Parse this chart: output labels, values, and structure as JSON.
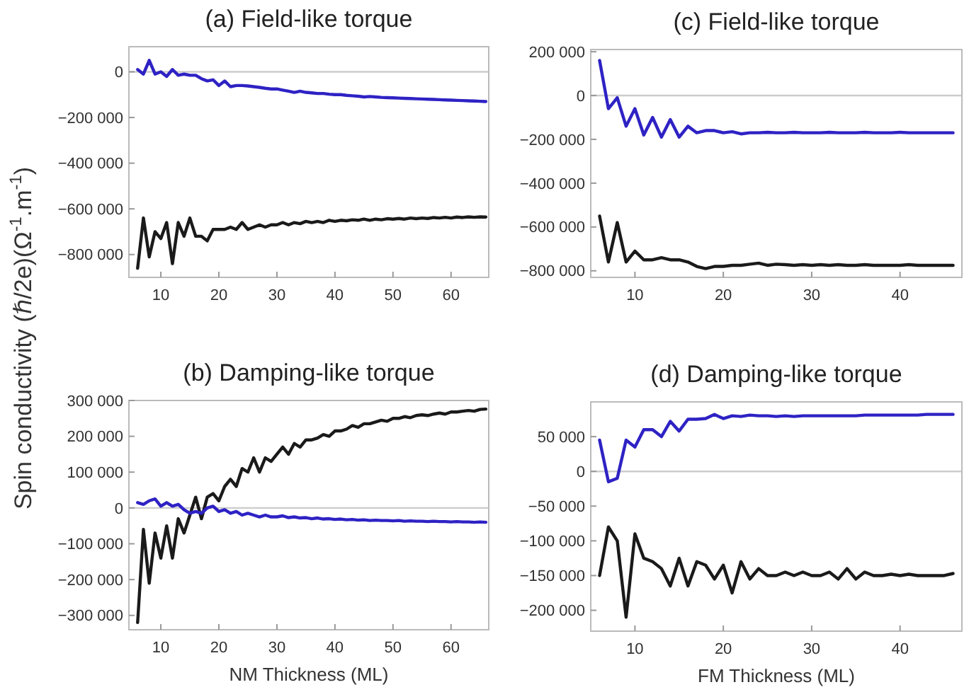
{
  "chart_data": [
    {
      "type": "line",
      "title": "(a) Field-like torque",
      "ylabel": "Spin conductivity (ℏ/2e)(Ω$^{-1}$.m$^{-1}$)",
      "xlim": [
        4.5,
        66.5
      ],
      "xticks": [
        10,
        20,
        30,
        40,
        50,
        60
      ],
      "ylim": [
        -900000,
        110000
      ],
      "yticks": [
        {
          "value": 0,
          "label": "0"
        },
        {
          "value": -200000,
          "label": "−200 000"
        },
        {
          "value": -400000,
          "label": "−400 000"
        },
        {
          "value": -600000,
          "label": "−600 000"
        },
        {
          "value": -800000,
          "label": "−800 000"
        }
      ],
      "ref_lines": [
        {
          "axis": "y",
          "value": 0,
          "color": "#cccccc"
        }
      ],
      "grid": false,
      "x": [
        6,
        7,
        8,
        9,
        10,
        11,
        12,
        13,
        14,
        15,
        16,
        17,
        18,
        19,
        20,
        21,
        22,
        23,
        24,
        25,
        26,
        27,
        28,
        29,
        30,
        31,
        32,
        33,
        34,
        35,
        36,
        37,
        38,
        39,
        40,
        41,
        42,
        43,
        44,
        45,
        46,
        47,
        48,
        49,
        50,
        51,
        52,
        53,
        54,
        55,
        56,
        57,
        58,
        59,
        60,
        61,
        62,
        63,
        64,
        65,
        66
      ],
      "series": [
        {
          "color": "#2e22c4",
          "values": [
            10000,
            -10000,
            50000,
            -10000,
            0,
            -20000,
            10000,
            -15000,
            -10000,
            -15000,
            -15000,
            -30000,
            -40000,
            -35000,
            -60000,
            -40000,
            -65000,
            -60000,
            -60000,
            -62000,
            -65000,
            -68000,
            -72000,
            -75000,
            -75000,
            -80000,
            -85000,
            -90000,
            -85000,
            -90000,
            -92000,
            -95000,
            -95000,
            -98000,
            -100000,
            -100000,
            -103000,
            -105000,
            -107000,
            -110000,
            -108000,
            -110000,
            -112000,
            -113000,
            -114000,
            -115000,
            -116000,
            -117000,
            -118000,
            -119000,
            -120000,
            -121000,
            -122000,
            -123000,
            -124000,
            -125000,
            -126000,
            -127000,
            -128000,
            -129000,
            -130000
          ]
        },
        {
          "color": "#1a1a1a",
          "values": [
            -860000,
            -640000,
            -810000,
            -700000,
            -730000,
            -660000,
            -840000,
            -660000,
            -720000,
            -640000,
            -720000,
            -720000,
            -740000,
            -690000,
            -690000,
            -690000,
            -680000,
            -690000,
            -660000,
            -690000,
            -680000,
            -670000,
            -680000,
            -670000,
            -670000,
            -660000,
            -670000,
            -660000,
            -665000,
            -655000,
            -660000,
            -655000,
            -660000,
            -650000,
            -655000,
            -650000,
            -652000,
            -648000,
            -650000,
            -645000,
            -650000,
            -645000,
            -648000,
            -643000,
            -645000,
            -642000,
            -645000,
            -640000,
            -643000,
            -640000,
            -642000,
            -638000,
            -640000,
            -637000,
            -640000,
            -636000,
            -638000,
            -635000,
            -637000,
            -635000,
            -636000
          ]
        }
      ]
    },
    {
      "type": "line",
      "title": "(c) Field-like torque",
      "xlim": [
        5,
        47
      ],
      "xticks": [
        10,
        20,
        30,
        40
      ],
      "ylim": [
        -830000,
        210000
      ],
      "yticks": [
        {
          "value": 200000,
          "label": "200 000"
        },
        {
          "value": 0,
          "label": "0"
        },
        {
          "value": -200000,
          "label": "−200 000"
        },
        {
          "value": -400000,
          "label": "−400 000"
        },
        {
          "value": -600000,
          "label": "−600 000"
        },
        {
          "value": -800000,
          "label": "−800 000"
        }
      ],
      "ref_lines": [
        {
          "axis": "y",
          "value": 0,
          "color": "#cccccc"
        }
      ],
      "grid": false,
      "x": [
        6,
        7,
        8,
        9,
        10,
        11,
        12,
        13,
        14,
        15,
        16,
        17,
        18,
        19,
        20,
        21,
        22,
        23,
        24,
        25,
        26,
        27,
        28,
        29,
        30,
        31,
        32,
        33,
        34,
        35,
        36,
        37,
        38,
        39,
        40,
        41,
        42,
        43,
        44,
        45,
        46
      ],
      "series": [
        {
          "color": "#2e22c4",
          "values": [
            160000,
            -60000,
            -10000,
            -140000,
            -60000,
            -180000,
            -100000,
            -190000,
            -110000,
            -190000,
            -140000,
            -170000,
            -160000,
            -160000,
            -170000,
            -165000,
            -175000,
            -170000,
            -170000,
            -168000,
            -170000,
            -170000,
            -168000,
            -170000,
            -170000,
            -170000,
            -168000,
            -170000,
            -170000,
            -170000,
            -168000,
            -170000,
            -170000,
            -170000,
            -168000,
            -170000,
            -170000,
            -170000,
            -170000,
            -170000,
            -170000
          ]
        },
        {
          "color": "#1a1a1a",
          "values": [
            -550000,
            -760000,
            -580000,
            -760000,
            -710000,
            -750000,
            -750000,
            -740000,
            -750000,
            -750000,
            -760000,
            -780000,
            -790000,
            -780000,
            -780000,
            -775000,
            -775000,
            -770000,
            -765000,
            -775000,
            -770000,
            -772000,
            -775000,
            -772000,
            -775000,
            -772000,
            -775000,
            -772000,
            -775000,
            -775000,
            -772000,
            -775000,
            -775000,
            -775000,
            -775000,
            -772000,
            -775000,
            -775000,
            -775000,
            -775000,
            -775000
          ]
        }
      ]
    },
    {
      "type": "line",
      "title": "(b) Damping-like torque",
      "xlabel": "NM Thickness (ML)",
      "xlim": [
        4.5,
        66.5
      ],
      "xticks": [
        10,
        20,
        30,
        40,
        50,
        60
      ],
      "ylim": [
        -340000,
        300000
      ],
      "yticks": [
        {
          "value": 300000,
          "label": "300 000"
        },
        {
          "value": 200000,
          "label": "200 000"
        },
        {
          "value": 100000,
          "label": "100 000"
        },
        {
          "value": 0,
          "label": "0"
        },
        {
          "value": -100000,
          "label": "−100 000"
        },
        {
          "value": -200000,
          "label": "−200 000"
        },
        {
          "value": -300000,
          "label": "−300 000"
        }
      ],
      "ref_lines": [
        {
          "axis": "y",
          "value": 0,
          "color": "#cccccc"
        }
      ],
      "grid": false,
      "x": [
        6,
        7,
        8,
        9,
        10,
        11,
        12,
        13,
        14,
        15,
        16,
        17,
        18,
        19,
        20,
        21,
        22,
        23,
        24,
        25,
        26,
        27,
        28,
        29,
        30,
        31,
        32,
        33,
        34,
        35,
        36,
        37,
        38,
        39,
        40,
        41,
        42,
        43,
        44,
        45,
        46,
        47,
        48,
        49,
        50,
        51,
        52,
        53,
        54,
        55,
        56,
        57,
        58,
        59,
        60,
        61,
        62,
        63,
        64,
        65,
        66
      ],
      "series": [
        {
          "color": "#1a1a1a",
          "values": [
            -320000,
            -60000,
            -210000,
            -70000,
            -140000,
            -50000,
            -140000,
            -30000,
            -70000,
            -20000,
            30000,
            -30000,
            30000,
            40000,
            20000,
            60000,
            80000,
            60000,
            110000,
            100000,
            140000,
            100000,
            140000,
            130000,
            150000,
            170000,
            150000,
            180000,
            170000,
            190000,
            190000,
            195000,
            205000,
            200000,
            215000,
            215000,
            220000,
            230000,
            225000,
            235000,
            235000,
            240000,
            245000,
            242000,
            250000,
            250000,
            255000,
            252000,
            258000,
            260000,
            258000,
            262000,
            265000,
            262000,
            268000,
            268000,
            270000,
            272000,
            270000,
            275000,
            276000
          ]
        },
        {
          "color": "#2e22c4",
          "values": [
            15000,
            10000,
            20000,
            25000,
            5000,
            15000,
            5000,
            10000,
            -5000,
            -15000,
            -10000,
            -15000,
            0,
            5000,
            -10000,
            -5000,
            -15000,
            -10000,
            -20000,
            -15000,
            -20000,
            -25000,
            -20000,
            -25000,
            -25000,
            -22000,
            -27000,
            -25000,
            -28000,
            -27000,
            -30000,
            -28000,
            -31000,
            -30000,
            -32000,
            -31000,
            -33000,
            -32000,
            -34000,
            -33000,
            -35000,
            -34000,
            -35000,
            -35000,
            -36000,
            -35000,
            -37000,
            -36000,
            -37000,
            -37000,
            -38000,
            -37000,
            -38000,
            -38000,
            -39000,
            -38000,
            -39000,
            -39000,
            -40000,
            -39000,
            -40000
          ]
        }
      ]
    },
    {
      "type": "line",
      "title": "(d) Damping-like torque",
      "xlabel": "FM Thickness (ML)",
      "xlim": [
        5,
        47
      ],
      "xticks": [
        10,
        20,
        30,
        40
      ],
      "ylim": [
        -230000,
        100000
      ],
      "yticks": [
        {
          "value": 50000,
          "label": "50 000"
        },
        {
          "value": 0,
          "label": "0"
        },
        {
          "value": -50000,
          "label": "−50 000"
        },
        {
          "value": -100000,
          "label": "−100 000"
        },
        {
          "value": -150000,
          "label": "−150 000"
        },
        {
          "value": -200000,
          "label": "−200 000"
        }
      ],
      "ref_lines": [
        {
          "axis": "y",
          "value": 0,
          "color": "#cccccc"
        }
      ],
      "grid": false,
      "x": [
        6,
        7,
        8,
        9,
        10,
        11,
        12,
        13,
        14,
        15,
        16,
        17,
        18,
        19,
        20,
        21,
        22,
        23,
        24,
        25,
        26,
        27,
        28,
        29,
        30,
        31,
        32,
        33,
        34,
        35,
        36,
        37,
        38,
        39,
        40,
        41,
        42,
        43,
        44,
        45,
        46
      ],
      "series": [
        {
          "color": "#2e22c4",
          "values": [
            45000,
            -15000,
            -10000,
            45000,
            35000,
            60000,
            60000,
            50000,
            72000,
            58000,
            75000,
            75000,
            76000,
            82000,
            76000,
            80000,
            79000,
            81000,
            80000,
            80000,
            79000,
            80000,
            79000,
            80000,
            80000,
            80000,
            80000,
            80000,
            80000,
            80000,
            81000,
            81000,
            81000,
            81000,
            81000,
            81000,
            81000,
            82000,
            82000,
            82000,
            82000
          ]
        },
        {
          "color": "#1a1a1a",
          "values": [
            -150000,
            -80000,
            -100000,
            -210000,
            -90000,
            -125000,
            -130000,
            -140000,
            -165000,
            -125000,
            -165000,
            -130000,
            -135000,
            -155000,
            -135000,
            -175000,
            -130000,
            -155000,
            -140000,
            -150000,
            -150000,
            -145000,
            -150000,
            -145000,
            -150000,
            -150000,
            -145000,
            -155000,
            -140000,
            -155000,
            -145000,
            -150000,
            -150000,
            -148000,
            -150000,
            -148000,
            -150000,
            -150000,
            -150000,
            -150000,
            -147000
          ]
        }
      ]
    }
  ]
}
